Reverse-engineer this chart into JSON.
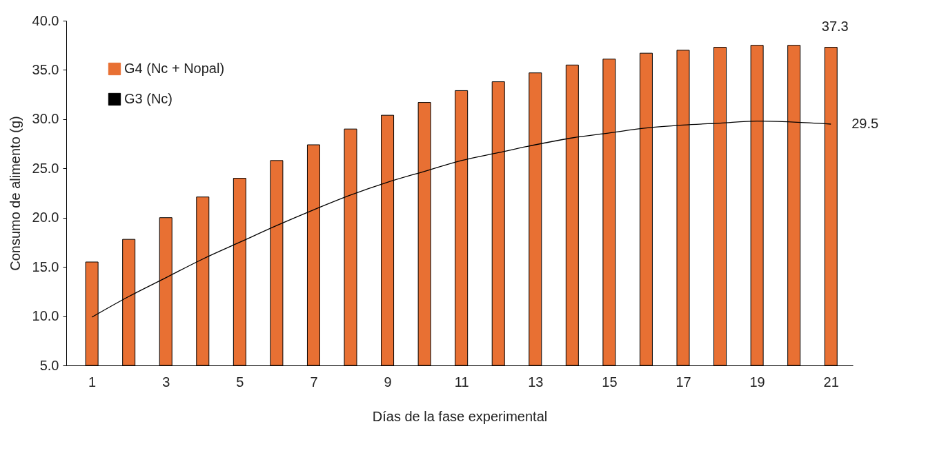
{
  "chart_data": {
    "type": "bar",
    "xlabel": "Días de la fase experimental",
    "ylabel": "Consumo de alimento (g)",
    "x": [
      1,
      2,
      3,
      4,
      5,
      6,
      7,
      8,
      9,
      10,
      11,
      12,
      13,
      14,
      15,
      16,
      17,
      18,
      19,
      20,
      21
    ],
    "series": [
      {
        "name": "G4 (Nc + Nopal)",
        "color": "#e87033",
        "values": [
          15.5,
          17.8,
          20.0,
          22.1,
          24.0,
          25.8,
          27.4,
          29.0,
          30.4,
          31.7,
          32.9,
          33.8,
          34.7,
          35.5,
          36.1,
          36.7,
          37.0,
          37.3,
          37.5,
          37.5,
          37.3
        ]
      },
      {
        "name": "G3 (Nc)",
        "type": "line",
        "color": "#000000",
        "values": [
          9.9,
          12.0,
          13.9,
          15.8,
          17.5,
          19.2,
          20.8,
          22.3,
          23.6,
          24.7,
          25.8,
          26.6,
          27.4,
          28.1,
          28.6,
          29.1,
          29.4,
          29.6,
          29.8,
          29.7,
          29.5
        ]
      }
    ],
    "xlim": [
      0.4,
      21.5
    ],
    "xticks": [
      1,
      3,
      5,
      7,
      9,
      11,
      13,
      15,
      17,
      19,
      21
    ],
    "ylim": [
      5,
      40
    ],
    "yticks": [
      {
        "value": 5,
        "label": "5.0"
      },
      {
        "value": 10,
        "label": "10.0"
      },
      {
        "value": 15,
        "label": "15.0"
      },
      {
        "value": 20,
        "label": "20.0"
      },
      {
        "value": 25,
        "label": "25.0"
      },
      {
        "value": 30,
        "label": "30.0"
      },
      {
        "value": 35,
        "label": "35.0"
      },
      {
        "value": 40,
        "label": "40.0"
      }
    ],
    "grid": false,
    "legend": "top left",
    "marker": "none",
    "line_style": "solid",
    "annotations": [
      {
        "text": "37.3",
        "x": 21,
        "y": 37.3
      },
      {
        "text": "29.5",
        "x": 21,
        "y": 29.5
      }
    ]
  }
}
